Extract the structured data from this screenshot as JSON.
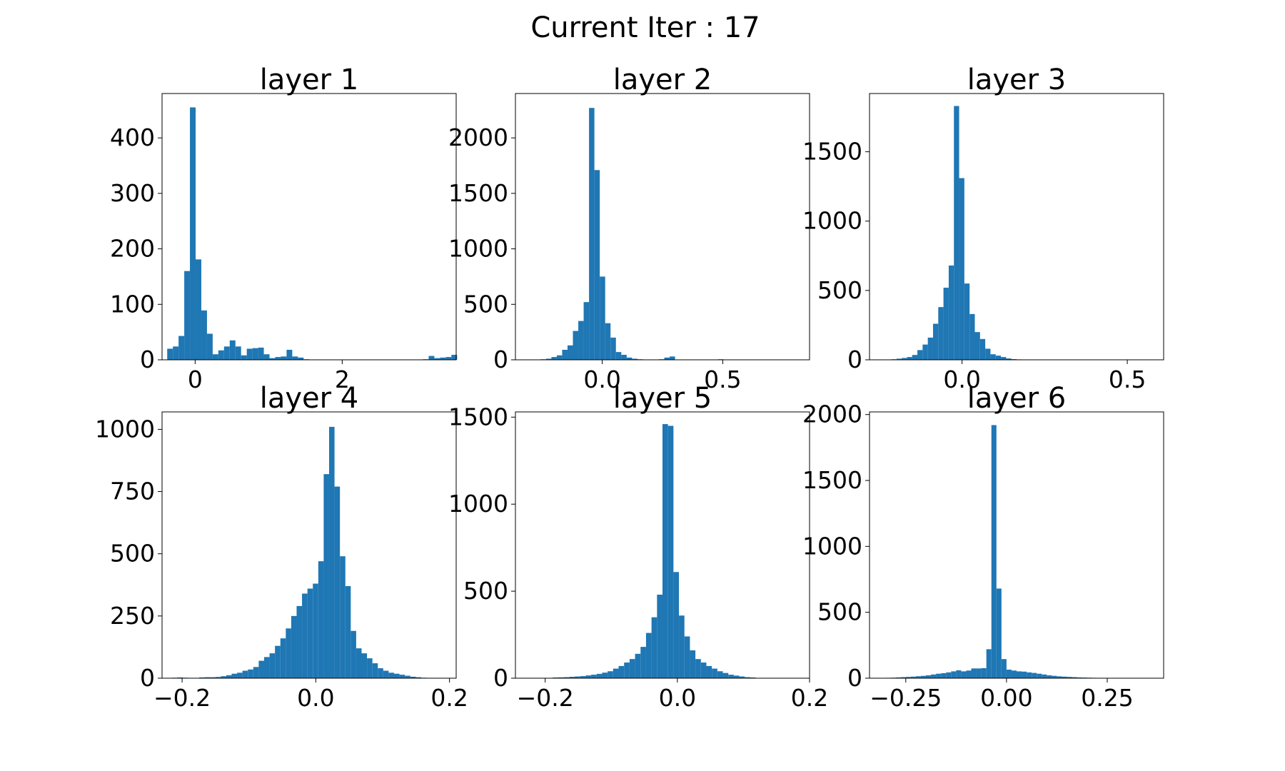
{
  "figure": {
    "title": "Current Iter : 17"
  },
  "bar_color": "#1f77b4",
  "chart_data": [
    {
      "type": "bar",
      "title": "layer 1",
      "xlim": [
        -0.45,
        3.55
      ],
      "ylim": [
        0,
        480
      ],
      "xticks": [
        {
          "v": 0,
          "label": "0"
        },
        {
          "v": 2,
          "label": "2"
        }
      ],
      "yticks": [
        {
          "v": 0,
          "label": "0"
        },
        {
          "v": 100,
          "label": "100"
        },
        {
          "v": 200,
          "label": "200"
        },
        {
          "v": 300,
          "label": "300"
        },
        {
          "v": 400,
          "label": "400"
        }
      ],
      "bin_start": -0.38,
      "bin_width": 0.0773,
      "values": [
        20,
        24,
        43,
        160,
        455,
        181,
        89,
        47,
        10,
        17,
        24,
        35,
        24,
        8,
        20,
        21,
        22,
        10,
        3,
        5,
        6,
        18,
        6,
        4,
        1,
        0,
        0,
        0,
        0,
        0,
        0,
        0,
        0,
        0,
        0,
        0,
        0,
        0,
        0,
        0,
        0,
        0,
        0,
        0,
        0,
        1,
        7,
        3,
        4,
        5,
        9
      ]
    },
    {
      "type": "bar",
      "title": "layer 2",
      "xlim": [
        -0.36,
        0.86
      ],
      "ylim": [
        0,
        2400
      ],
      "xticks": [
        {
          "v": 0.0,
          "label": "0.0"
        },
        {
          "v": 0.5,
          "label": "0.5"
        }
      ],
      "yticks": [
        {
          "v": 0,
          "label": "0"
        },
        {
          "v": 500,
          "label": "500"
        },
        {
          "v": 1000,
          "label": "1000"
        },
        {
          "v": 1500,
          "label": "1500"
        },
        {
          "v": 2000,
          "label": "2000"
        }
      ],
      "bin_start": -0.3,
      "bin_width": 0.0223,
      "values": [
        1,
        2,
        5,
        10,
        25,
        40,
        90,
        130,
        260,
        350,
        520,
        2270,
        1710,
        750,
        330,
        200,
        70,
        45,
        20,
        10,
        5,
        3,
        2,
        2,
        5,
        20,
        30,
        2,
        1,
        0,
        0,
        0,
        0,
        1,
        3,
        5,
        2,
        0,
        0,
        0,
        0,
        0,
        0,
        0,
        0,
        0,
        0,
        0,
        0,
        0
      ]
    },
    {
      "type": "bar",
      "title": "layer 3",
      "xlim": [
        -0.28,
        0.61
      ],
      "ylim": [
        0,
        1920
      ],
      "xticks": [
        {
          "v": 0.0,
          "label": "0.0"
        },
        {
          "v": 0.5,
          "label": "0.5"
        }
      ],
      "yticks": [
        {
          "v": 0,
          "label": "0"
        },
        {
          "v": 500,
          "label": "500"
        },
        {
          "v": 1000,
          "label": "1000"
        },
        {
          "v": 1500,
          "label": "1500"
        }
      ],
      "bin_start": -0.23,
      "bin_width": 0.0158,
      "values": [
        2,
        4,
        8,
        13,
        20,
        35,
        70,
        110,
        160,
        260,
        380,
        520,
        680,
        1830,
        1310,
        550,
        330,
        200,
        150,
        80,
        40,
        30,
        20,
        10,
        5,
        3,
        2,
        1,
        1,
        0,
        0,
        0,
        0,
        0,
        0,
        0,
        0,
        0,
        0,
        0,
        0,
        0,
        0,
        0,
        0,
        0,
        0,
        0,
        0,
        1
      ]
    },
    {
      "type": "bar",
      "title": "layer 4",
      "xlim": [
        -0.23,
        0.21
      ],
      "ylim": [
        0,
        1070
      ],
      "xticks": [
        {
          "v": -0.2,
          "label": "−0.2"
        },
        {
          "v": 0.0,
          "label": "0.0"
        },
        {
          "v": 0.2,
          "label": "0.2"
        }
      ],
      "yticks": [
        {
          "v": 0,
          "label": "0"
        },
        {
          "v": 250,
          "label": "250"
        },
        {
          "v": 500,
          "label": "500"
        },
        {
          "v": 750,
          "label": "750"
        },
        {
          "v": 1000,
          "label": "1000"
        }
      ],
      "bin_start": -0.215,
      "bin_width": 0.0081,
      "values": [
        2,
        3,
        2,
        1,
        1,
        3,
        4,
        4,
        5,
        8,
        12,
        18,
        22,
        30,
        35,
        45,
        70,
        85,
        100,
        130,
        160,
        200,
        250,
        290,
        340,
        360,
        380,
        470,
        820,
        1010,
        770,
        490,
        370,
        190,
        120,
        100,
        80,
        60,
        40,
        30,
        22,
        18,
        14,
        10,
        6,
        4,
        2,
        1
      ]
    },
    {
      "type": "bar",
      "title": "layer 5",
      "xlim": [
        -0.245,
        0.2
      ],
      "ylim": [
        0,
        1530
      ],
      "xticks": [
        {
          "v": -0.2,
          "label": "−0.2"
        },
        {
          "v": 0.0,
          "label": "0.0"
        },
        {
          "v": 0.2,
          "label": "0.2"
        }
      ],
      "yticks": [
        {
          "v": 0,
          "label": "0"
        },
        {
          "v": 500,
          "label": "500"
        },
        {
          "v": 1000,
          "label": "1000"
        },
        {
          "v": 1500,
          "label": "1500"
        }
      ],
      "bin_start": -0.23,
      "bin_width": 0.0083,
      "values": [
        1,
        1,
        2,
        2,
        2,
        4,
        5,
        6,
        8,
        10,
        12,
        16,
        20,
        25,
        32,
        40,
        55,
        70,
        90,
        110,
        140,
        180,
        260,
        350,
        480,
        1460,
        1450,
        610,
        360,
        240,
        160,
        110,
        90,
        70,
        55,
        40,
        30,
        20,
        15,
        10,
        6,
        4,
        2,
        1
      ]
    },
    {
      "type": "bar",
      "title": "layer 6",
      "xlim": [
        -0.34,
        0.39
      ],
      "ylim": [
        0,
        2020
      ],
      "xticks": [
        {
          "v": -0.25,
          "label": "−0.25"
        },
        {
          "v": 0.0,
          "label": "0.00"
        },
        {
          "v": 0.25,
          "label": "0.25"
        }
      ],
      "yticks": [
        {
          "v": 0,
          "label": "0"
        },
        {
          "v": 500,
          "label": "500"
        },
        {
          "v": 1000,
          "label": "1000"
        },
        {
          "v": 1500,
          "label": "1500"
        },
        {
          "v": 2000,
          "label": "2000"
        }
      ],
      "bin_start": -0.3,
      "bin_width": 0.0125,
      "values": [
        3,
        4,
        6,
        8,
        10,
        12,
        15,
        18,
        22,
        28,
        34,
        38,
        44,
        52,
        60,
        52,
        58,
        74,
        74,
        76,
        220,
        1920,
        680,
        145,
        65,
        58,
        52,
        50,
        44,
        40,
        34,
        28,
        22,
        18,
        14,
        12,
        10,
        8,
        6,
        5,
        4,
        3,
        2
      ]
    }
  ]
}
